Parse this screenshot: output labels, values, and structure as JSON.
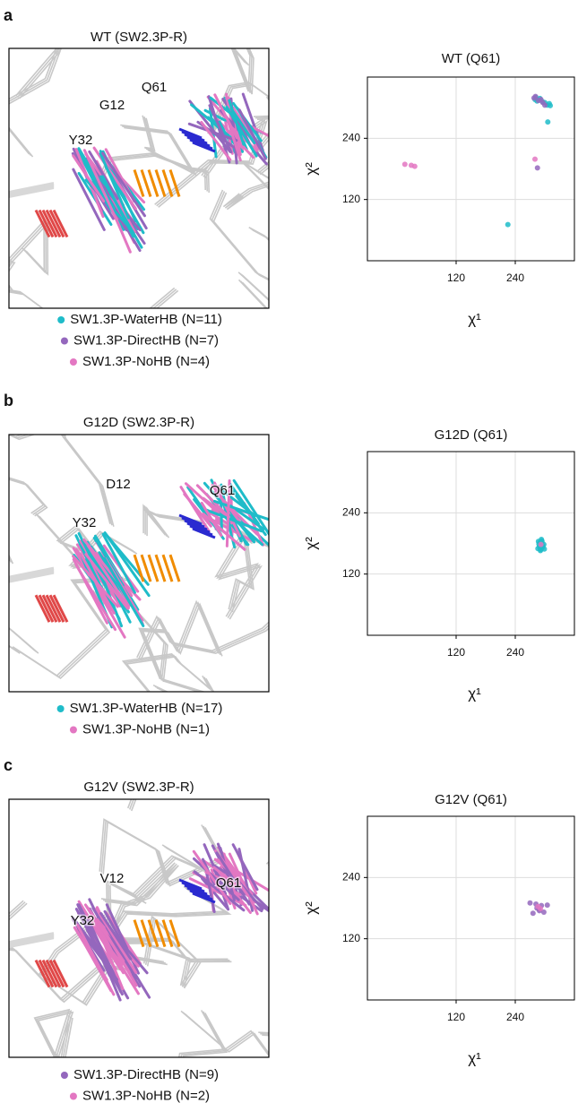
{
  "panels": [
    {
      "label": "a",
      "image_title": "WT (SW2.3P-R)",
      "residue_labels": [
        "G12",
        "Q61",
        "Y32"
      ]
    },
    {
      "label": "b",
      "image_title": "G12D (SW2.3P-R)",
      "residue_labels": [
        "D12",
        "Q61",
        "Y32"
      ]
    },
    {
      "label": "c",
      "image_title": "G12V (SW2.3P-R)",
      "residue_labels": [
        "V12",
        "Q61",
        "Y32"
      ]
    }
  ],
  "chart_data": [
    {
      "type": "scatter",
      "title": "WT (Q61)",
      "x_label": "χ¹",
      "y_label": "χ²",
      "xlim": [
        -60,
        360
      ],
      "ylim": [
        0,
        360
      ],
      "xticks": [
        120,
        240
      ],
      "yticks": [
        120,
        240
      ],
      "grid": true,
      "series": [
        {
          "name": "SW1.3P-WaterHB (N=11)",
          "color": "#1fbcc9",
          "x": [
            280,
            284,
            290,
            300,
            305,
            309,
            311,
            306,
            282,
            295,
            225
          ],
          "y": [
            316,
            313,
            318,
            310,
            305,
            308,
            304,
            272,
            320,
            312,
            71
          ]
        },
        {
          "name": "SW1.3P-DirectHB (N=7)",
          "color": "#9467bd",
          "x": [
            278,
            287,
            300,
            285,
            292,
            281,
            296
          ],
          "y": [
            319,
            314,
            305,
            182,
            316,
            322,
            310
          ]
        },
        {
          "name": "SW1.3P-NoHB (N=4)",
          "color": "#e377c2",
          "x": [
            280,
            16,
            29,
            36
          ],
          "y": [
            199,
            189,
            187,
            185
          ]
        }
      ]
    },
    {
      "type": "scatter",
      "title": "G12D (Q61)",
      "x_label": "χ¹",
      "y_label": "χ²",
      "xlim": [
        -60,
        360
      ],
      "ylim": [
        0,
        360
      ],
      "xticks": [
        120,
        240
      ],
      "yticks": [
        120,
        240
      ],
      "grid": true,
      "series": [
        {
          "name": "SW1.3P-WaterHB (N=17)",
          "color": "#1fbcc9",
          "x": [
            286,
            289,
            292,
            295,
            298,
            290,
            294,
            288,
            296,
            291,
            293,
            287,
            299,
            292,
            295,
            290,
            294
          ],
          "y": [
            170,
            175,
            168,
            172,
            178,
            182,
            185,
            179,
            174,
            166,
            188,
            184,
            169,
            180,
            176,
            171,
            183
          ]
        },
        {
          "name": "SW1.3P-NoHB (N=1)",
          "color": "#e377c2",
          "x": [
            292
          ],
          "y": [
            178
          ]
        }
      ]
    },
    {
      "type": "scatter",
      "title": "G12V (Q61)",
      "x_label": "χ¹",
      "y_label": "χ²",
      "xlim": [
        -60,
        360
      ],
      "ylim": [
        0,
        360
      ],
      "xticks": [
        120,
        240
      ],
      "yticks": [
        120,
        240
      ],
      "grid": true,
      "series": [
        {
          "name": "SW1.3P-DirectHB (N=9)",
          "color": "#9467bd",
          "x": [
            270,
            276,
            284,
            289,
            293,
            298,
            305,
            282,
            288
          ],
          "y": [
            190,
            170,
            180,
            175,
            185,
            172,
            186,
            188,
            178
          ]
        },
        {
          "name": "SW1.3P-NoHB (N=2)",
          "color": "#e377c2",
          "x": [
            286,
            291
          ],
          "y": [
            183,
            179
          ]
        }
      ]
    }
  ]
}
